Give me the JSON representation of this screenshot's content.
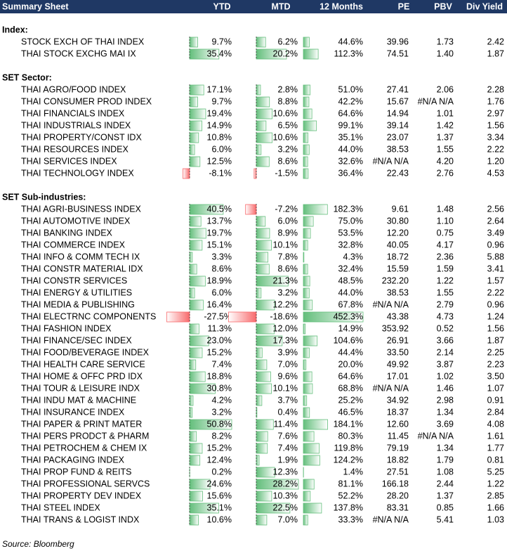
{
  "header": {
    "title": "Summary Sheet",
    "columns": [
      "YTD",
      "MTD",
      "12 Months",
      "PE",
      "PBV",
      "Div Yield"
    ]
  },
  "sections": [
    {
      "title": "Index:",
      "rows": [
        [
          "STOCK EXCH OF THAI INDEX",
          "9.7%",
          "6.2%",
          "44.6%",
          "39.96",
          "1.73",
          "2.42"
        ],
        [
          "THAI STOCK EXCHG MAI IX",
          "35.4%",
          "20.2%",
          "112.3%",
          "74.51",
          "1.40",
          "1.87"
        ]
      ]
    },
    {
      "title": "SET Sector:",
      "rows": [
        [
          "THAI AGRO/FOOD INDEX",
          "17.1%",
          "2.8%",
          "51.0%",
          "27.41",
          "2.06",
          "2.28"
        ],
        [
          "THAI CONSUMER PROD INDEX",
          "9.7%",
          "8.8%",
          "42.2%",
          "15.67",
          "#N/A N/A",
          "1.76"
        ],
        [
          "THAI FINANCIALS INDEX",
          "19.4%",
          "10.6%",
          "64.6%",
          "14.94",
          "1.01",
          "2.97"
        ],
        [
          "THAI INDUSTRIALS INDEX",
          "14.9%",
          "6.5%",
          "99.1%",
          "39.14",
          "1.42",
          "1.56"
        ],
        [
          "THAI PROPERTY/CONST IDX",
          "10.8%",
          "10.6%",
          "35.1%",
          "23.07",
          "1.37",
          "3.34"
        ],
        [
          "THAI RESOURCES INDEX",
          "6.0%",
          "3.2%",
          "44.0%",
          "38.53",
          "1.55",
          "2.22"
        ],
        [
          "THAI SERVICES INDEX",
          "12.5%",
          "8.6%",
          "32.6%",
          "#N/A N/A",
          "4.20",
          "1.20"
        ],
        [
          "THAI TECHNOLOGY INDEX",
          "-8.1%",
          "-1.5%",
          "36.4%",
          "22.43",
          "2.76",
          "4.53"
        ]
      ]
    },
    {
      "title": "SET Sub-industries:",
      "rows": [
        [
          "THAI AGRI-BUSINESS INDEX",
          "40.5%",
          "-7.2%",
          "182.3%",
          "9.61",
          "1.48",
          "2.56"
        ],
        [
          "THAI AUTOMOTIVE INDEX",
          "13.7%",
          "6.0%",
          "75.0%",
          "30.80",
          "1.10",
          "2.64"
        ],
        [
          "THAI BANKING INDEX",
          "19.7%",
          "8.9%",
          "53.5%",
          "12.20",
          "0.75",
          "3.49"
        ],
        [
          "THAI COMMERCE INDEX",
          "15.1%",
          "10.1%",
          "32.8%",
          "40.05",
          "4.17",
          "0.96"
        ],
        [
          "THAI INFO & COMM TECH IX",
          "3.3%",
          "7.8%",
          "4.3%",
          "18.72",
          "2.36",
          "5.88"
        ],
        [
          "THAI CONSTR MATERIAL IDX",
          "8.6%",
          "8.6%",
          "32.4%",
          "15.59",
          "1.59",
          "3.41"
        ],
        [
          "THAI CONSTR SERVICES",
          "18.9%",
          "21.3%",
          "48.5%",
          "232.20",
          "1.22",
          "1.57"
        ],
        [
          "THAI ENERGY & UTILITIES",
          "6.0%",
          "3.2%",
          "44.0%",
          "38.53",
          "1.55",
          "2.22"
        ],
        [
          "THAI MEDIA & PUBLISHING",
          "16.4%",
          "12.2%",
          "67.8%",
          "#N/A N/A",
          "2.79",
          "0.96"
        ],
        [
          "THAI ELECTRNC COMPONENTS",
          "-27.5%",
          "-18.6%",
          "452.3%",
          "43.38",
          "4.73",
          "1.24"
        ],
        [
          "THAI FASHION INDEX",
          "11.3%",
          "12.0%",
          "14.9%",
          "353.92",
          "0.52",
          "1.56"
        ],
        [
          "THAI FINANCE/SEC INDEX",
          "23.0%",
          "17.3%",
          "104.6%",
          "26.91",
          "3.66",
          "1.87"
        ],
        [
          "THAI FOOD/BEVERAGE INDEX",
          "15.2%",
          "3.9%",
          "44.4%",
          "33.50",
          "2.14",
          "2.25"
        ],
        [
          "THAI HEALTH CARE SERVICE",
          "7.4%",
          "7.0%",
          "20.0%",
          "49.92",
          "3.87",
          "2.23"
        ],
        [
          "THAI HOME & OFFC PRD IDX",
          "18.8%",
          "9.6%",
          "64.6%",
          "17.01",
          "1.02",
          "3.50"
        ],
        [
          "THAI TOUR & LEISURE INDX",
          "30.8%",
          "10.1%",
          "68.8%",
          "#N/A N/A",
          "1.46",
          "1.07"
        ],
        [
          "THAI INDU MAT & MACHINE",
          "4.2%",
          "3.7%",
          "25.2%",
          "34.92",
          "2.98",
          "0.91"
        ],
        [
          "THAI INSURANCE INDEX",
          "3.2%",
          "0.4%",
          "46.5%",
          "18.37",
          "1.34",
          "2.84"
        ],
        [
          "THAI PAPER & PRINT MATER",
          "50.8%",
          "11.4%",
          "184.1%",
          "12.60",
          "3.69",
          "4.08"
        ],
        [
          "THAI PERS PRODCT & PHARM",
          "8.2%",
          "7.6%",
          "80.3%",
          "11.45",
          "#N/A N/A",
          "1.61"
        ],
        [
          "THAI PETROCHEM & CHEM IX",
          "15.2%",
          "7.4%",
          "119.8%",
          "79.19",
          "1.34",
          "1.77"
        ],
        [
          "THAI PACKAGING INDEX",
          "12.4%",
          "1.9%",
          "124.2%",
          "18.82",
          "1.79",
          "0.81"
        ],
        [
          "THAI PROP FUND & REITS",
          "0.2%",
          "12.3%",
          "1.4%",
          "27.51",
          "1.08",
          "5.25"
        ],
        [
          "THAI PROFESSIONAL SERVCS",
          "24.6%",
          "28.2%",
          "81.1%",
          "166.18",
          "2.44",
          "1.22"
        ],
        [
          "THAI PROPERTY DEV INDEX",
          "15.6%",
          "10.3%",
          "52.2%",
          "28.20",
          "1.37",
          "2.85"
        ],
        [
          "THAI STEEL INDEX",
          "35.1%",
          "22.5%",
          "137.8%",
          "83.31",
          "0.85",
          "1.66"
        ],
        [
          "THAI TRANS & LOGIST INDX",
          "10.6%",
          "7.0%",
          "33.3%",
          "#N/A N/A",
          "5.41",
          "1.03"
        ]
      ]
    }
  ],
  "source": "Source: Bloomberg"
}
